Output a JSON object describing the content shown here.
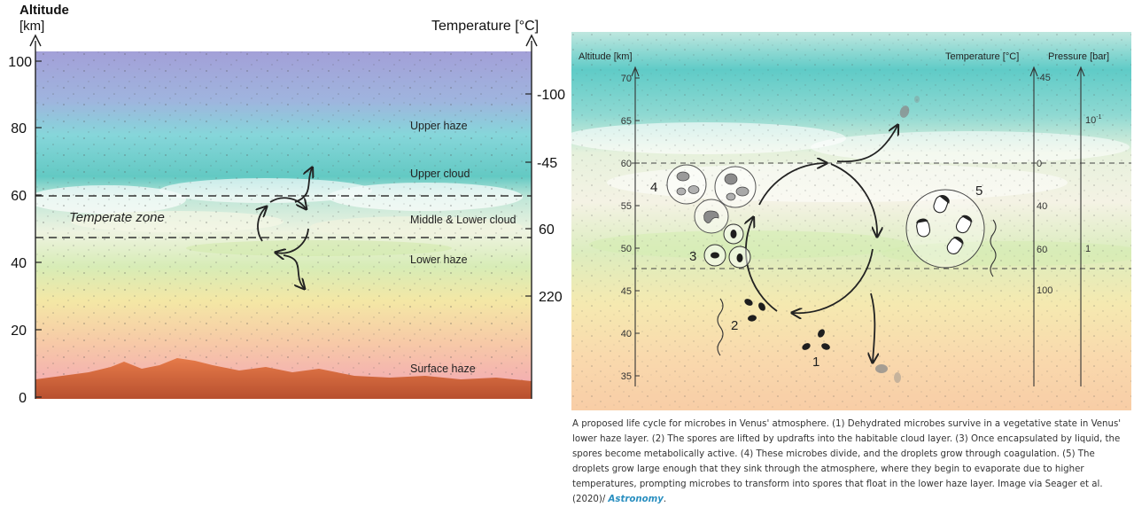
{
  "left_panel": {
    "title": "Altitude",
    "altitude_unit": "[km]",
    "temperature_label": "Temperature [°C]",
    "altitude_ticks": [
      "0",
      "20",
      "40",
      "60",
      "80",
      "100"
    ],
    "temperature_ticks": [
      "-100",
      "-45",
      "60",
      "220"
    ],
    "zone_label": "Temperate zone",
    "layers": {
      "upper_haze": "Upper haze",
      "upper_cloud": "Upper cloud",
      "middle_lower_cloud": "Middle & Lower cloud",
      "lower_haze": "Lower haze",
      "surface_haze": "Surface haze"
    }
  },
  "right_panel": {
    "altitude_label": "Altitude [km]",
    "temperature_label": "Temperature [°C]",
    "pressure_label": "Pressure [bar]",
    "altitude_ticks": [
      "70",
      "65",
      "60",
      "55",
      "50",
      "45",
      "40",
      "35"
    ],
    "temperature_ticks": [
      "-45",
      "0",
      "40",
      "60",
      "100"
    ],
    "pressure_ticks": [
      "10",
      "-1",
      "1"
    ],
    "stage_labels": [
      "1",
      "2",
      "3",
      "4",
      "5"
    ]
  },
  "caption": {
    "text": "A proposed life cycle for microbes in Venus' atmosphere. (1) Dehydrated microbes survive in a vegetative state in Venus' lower haze layer. (2) The spores are lifted by updrafts into the habitable cloud layer. (3) Once encapsulated by liquid, the spores become metabolically active. (4) These microbes divide, and the droplets grow through coagulation. (5) The droplets grow large enough that they sink through the atmosphere, where they begin to evaporate due to higher temperatures, prompting microbes to transform into spores that float in the lower haze layer. Image via Seager et al. (2020)/ ",
    "credit": "Astronomy",
    "end": "."
  },
  "colors": {
    "sky_top": "#9aa0d8",
    "cloud_teal": "#59c7c2",
    "haze_yellow": "#f3e6a4",
    "haze_pink": "#f2a9b5",
    "surface_red": "#d8643e",
    "credit_blue": "#2a8fc0"
  }
}
